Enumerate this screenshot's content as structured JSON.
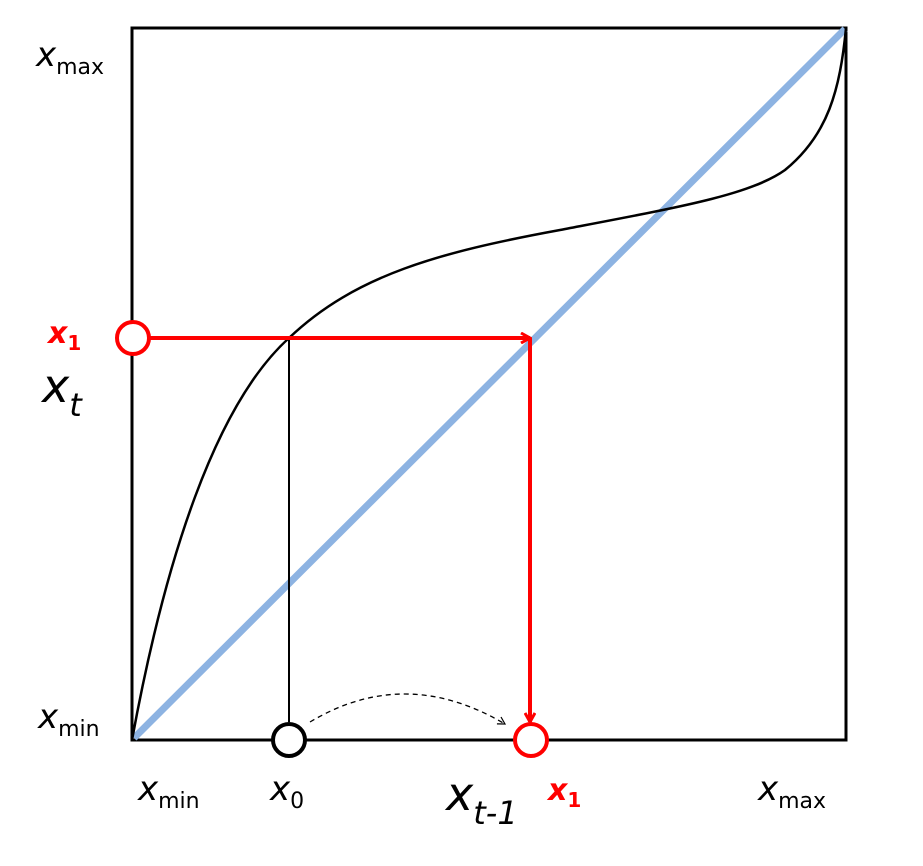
{
  "diagram": {
    "type": "cobweb-plot",
    "colors": {
      "frame": "#000000",
      "identity_line": "#8db3e2",
      "map_curve": "#000000",
      "iteration": "#ff0000"
    },
    "y_axis": {
      "label": {
        "base": "x",
        "sub": "t"
      },
      "top": {
        "base": "x",
        "sub": "max"
      },
      "bottom": {
        "base": "x",
        "sub": "min"
      },
      "marker": {
        "base": "x",
        "sub": "1"
      }
    },
    "x_axis": {
      "label": {
        "base": "x",
        "sub": "t-1"
      },
      "left": {
        "base": "x",
        "sub": "min"
      },
      "right": {
        "base": "x",
        "sub": "max"
      },
      "start": {
        "base": "x",
        "sub": "0"
      },
      "marker": {
        "base": "x",
        "sub": "1"
      }
    }
  }
}
